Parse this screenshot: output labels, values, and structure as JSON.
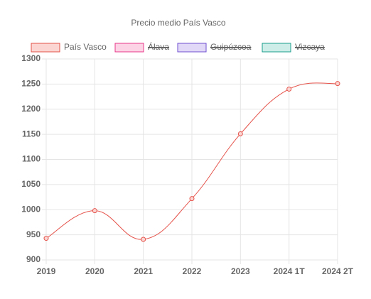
{
  "chart_data": {
    "type": "line",
    "title": "Precio medio País Vasco",
    "categories": [
      "2019",
      "2020",
      "2021",
      "2022",
      "2023",
      "2024 1T",
      "2024 2T"
    ],
    "series": [
      {
        "name": "País Vasco",
        "color": "#e5534b",
        "fill": "#fbd5d2",
        "hidden": false,
        "values": [
          943,
          998,
          941,
          1022,
          1151,
          1240,
          1251
        ]
      },
      {
        "name": "Álava",
        "color": "#e8388a",
        "fill": "#fbd3e5",
        "hidden": true,
        "values": [
          null,
          null,
          null,
          null,
          null,
          null,
          null
        ]
      },
      {
        "name": "Guipúzcoa",
        "color": "#6f4fd0",
        "fill": "#e0d8f6",
        "hidden": true,
        "values": [
          null,
          null,
          null,
          null,
          null,
          null,
          null
        ]
      },
      {
        "name": "Vizcaya",
        "color": "#1a9e8c",
        "fill": "#cdeee8",
        "hidden": true,
        "values": [
          null,
          null,
          null,
          null,
          null,
          null,
          null
        ]
      }
    ],
    "ylim": [
      900,
      1300
    ],
    "yticks": [
      900,
      950,
      1000,
      1050,
      1100,
      1150,
      1200,
      1250,
      1300
    ],
    "grid": true
  }
}
